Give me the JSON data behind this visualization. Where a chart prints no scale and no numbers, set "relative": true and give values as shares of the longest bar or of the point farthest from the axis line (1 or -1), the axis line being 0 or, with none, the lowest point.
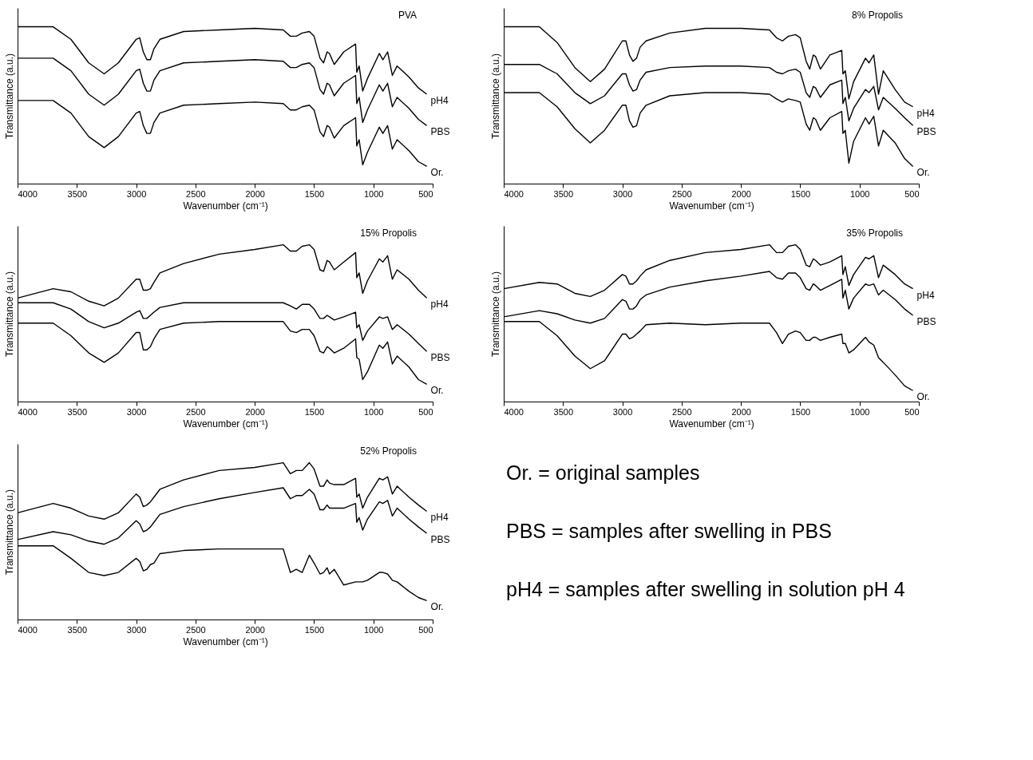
{
  "chart_data": [
    {
      "type": "line",
      "title": "PVA",
      "xlabel": "Wavenumber (cm⁻¹)",
      "ylabel": "Transmittance (a.u.)",
      "relative": true,
      "tick_labels": "x",
      "grid": false,
      "legend": false,
      "marker": "none",
      "line_style": "solid",
      "xlim": [
        4000,
        500
      ],
      "xticks": [
        4000,
        3500,
        3000,
        2500,
        2000,
        1500,
        1000,
        500
      ],
      "x": [
        4000,
        3700,
        3550,
        3400,
        3270,
        3150,
        3000,
        2970,
        2940,
        2910,
        2880,
        2850,
        2800,
        2600,
        2300,
        2000,
        1760,
        1700,
        1650,
        1600,
        1540,
        1500,
        1450,
        1420,
        1390,
        1370,
        1330,
        1250,
        1150,
        1140,
        1120,
        1090,
        1050,
        950,
        920,
        880,
        840,
        800,
        700,
        620,
        550
      ],
      "series": [
        {
          "name": "pH4",
          "color": "#000000",
          "values": [
            1.0,
            1.0,
            0.92,
            0.77,
            0.7,
            0.77,
            0.92,
            0.93,
            0.84,
            0.79,
            0.79,
            0.86,
            0.92,
            0.97,
            0.98,
            0.99,
            0.98,
            0.94,
            0.94,
            0.96,
            0.97,
            0.94,
            0.8,
            0.77,
            0.84,
            0.83,
            0.76,
            0.84,
            0.89,
            0.71,
            0.75,
            0.59,
            0.67,
            0.83,
            0.79,
            0.84,
            0.69,
            0.75,
            0.68,
            0.61,
            0.57
          ]
        },
        {
          "name": "PBS",
          "color": "#000000",
          "values": [
            0.8,
            0.8,
            0.72,
            0.57,
            0.5,
            0.57,
            0.72,
            0.73,
            0.64,
            0.59,
            0.59,
            0.66,
            0.72,
            0.77,
            0.78,
            0.79,
            0.78,
            0.74,
            0.74,
            0.76,
            0.77,
            0.74,
            0.6,
            0.57,
            0.64,
            0.63,
            0.56,
            0.64,
            0.69,
            0.51,
            0.55,
            0.39,
            0.47,
            0.63,
            0.59,
            0.64,
            0.49,
            0.55,
            0.48,
            0.41,
            0.37
          ]
        },
        {
          "name": "Or.",
          "color": "#000000",
          "values": [
            0.53,
            0.53,
            0.45,
            0.3,
            0.23,
            0.3,
            0.45,
            0.46,
            0.37,
            0.32,
            0.32,
            0.39,
            0.45,
            0.5,
            0.51,
            0.52,
            0.51,
            0.47,
            0.47,
            0.49,
            0.5,
            0.47,
            0.33,
            0.3,
            0.37,
            0.36,
            0.29,
            0.37,
            0.42,
            0.24,
            0.28,
            0.12,
            0.2,
            0.36,
            0.32,
            0.37,
            0.22,
            0.28,
            0.21,
            0.14,
            0.11
          ]
        }
      ]
    },
    {
      "type": "line",
      "title": "8% Propolis",
      "xlabel": "Wavenumber (cm⁻¹)",
      "ylabel": "Transmittance (a.u.)",
      "relative": true,
      "tick_labels": "x",
      "grid": false,
      "legend": false,
      "marker": "none",
      "line_style": "solid",
      "xlim": [
        4000,
        500
      ],
      "xticks": [
        4000,
        3500,
        3000,
        2500,
        2000,
        1500,
        1000,
        500
      ],
      "x": [
        4000,
        3700,
        3550,
        3400,
        3270,
        3150,
        3000,
        2970,
        2940,
        2910,
        2880,
        2850,
        2800,
        2600,
        2300,
        2000,
        1760,
        1700,
        1650,
        1600,
        1540,
        1500,
        1450,
        1420,
        1390,
        1370,
        1330,
        1250,
        1150,
        1140,
        1120,
        1090,
        1050,
        950,
        920,
        880,
        840,
        800,
        700,
        620,
        550
      ],
      "series": [
        {
          "name": "pH4",
          "color": "#000000",
          "values": [
            1.0,
            1.0,
            0.9,
            0.74,
            0.65,
            0.73,
            0.91,
            0.91,
            0.82,
            0.78,
            0.8,
            0.87,
            0.91,
            0.96,
            0.99,
            0.99,
            0.98,
            0.93,
            0.91,
            0.94,
            0.95,
            0.93,
            0.78,
            0.73,
            0.82,
            0.81,
            0.73,
            0.82,
            0.85,
            0.7,
            0.72,
            0.54,
            0.65,
            0.8,
            0.77,
            0.82,
            0.57,
            0.72,
            0.6,
            0.52,
            0.49
          ]
        },
        {
          "name": "PBS",
          "color": "#000000",
          "values": [
            0.76,
            0.76,
            0.7,
            0.58,
            0.51,
            0.56,
            0.7,
            0.7,
            0.63,
            0.59,
            0.6,
            0.66,
            0.71,
            0.74,
            0.75,
            0.75,
            0.74,
            0.71,
            0.7,
            0.72,
            0.73,
            0.71,
            0.58,
            0.55,
            0.62,
            0.61,
            0.55,
            0.63,
            0.66,
            0.51,
            0.55,
            0.4,
            0.48,
            0.6,
            0.58,
            0.62,
            0.47,
            0.55,
            0.48,
            0.42,
            0.37
          ]
        },
        {
          "name": "Or.",
          "color": "#000000",
          "values": [
            0.58,
            0.58,
            0.49,
            0.35,
            0.26,
            0.34,
            0.5,
            0.5,
            0.4,
            0.36,
            0.37,
            0.45,
            0.5,
            0.56,
            0.58,
            0.58,
            0.57,
            0.54,
            0.52,
            0.54,
            0.53,
            0.52,
            0.38,
            0.34,
            0.42,
            0.41,
            0.34,
            0.42,
            0.46,
            0.32,
            0.34,
            0.13,
            0.27,
            0.42,
            0.38,
            0.43,
            0.24,
            0.34,
            0.26,
            0.16,
            0.11
          ]
        }
      ]
    },
    {
      "type": "line",
      "title": "15% Propolis",
      "xlabel": "Wavenumber (cm⁻¹)",
      "ylabel": "Transmittance (a.u.)",
      "relative": true,
      "tick_labels": "x",
      "grid": false,
      "legend": false,
      "marker": "none",
      "line_style": "solid",
      "xlim": [
        4000,
        500
      ],
      "xticks": [
        4000,
        3500,
        3000,
        2500,
        2000,
        1500,
        1000,
        500
      ],
      "x": [
        4000,
        3700,
        3550,
        3400,
        3270,
        3150,
        3000,
        2970,
        2940,
        2910,
        2880,
        2850,
        2800,
        2600,
        2300,
        2000,
        1760,
        1700,
        1650,
        1600,
        1540,
        1500,
        1450,
        1420,
        1390,
        1370,
        1330,
        1250,
        1150,
        1140,
        1120,
        1090,
        1050,
        950,
        920,
        880,
        840,
        800,
        700,
        620,
        550
      ],
      "series": [
        {
          "name": "pH4",
          "color": "#000000",
          "values": [
            0.66,
            0.72,
            0.7,
            0.64,
            0.61,
            0.66,
            0.78,
            0.78,
            0.71,
            0.71,
            0.72,
            0.76,
            0.82,
            0.88,
            0.94,
            0.97,
            1.0,
            0.96,
            0.96,
            0.99,
            1.0,
            0.97,
            0.84,
            0.83,
            0.9,
            0.89,
            0.84,
            0.89,
            0.95,
            0.79,
            0.82,
            0.69,
            0.77,
            0.91,
            0.89,
            0.93,
            0.78,
            0.84,
            0.78,
            0.71,
            0.66
          ]
        },
        {
          "name": "PBS",
          "color": "#000000",
          "values": [
            0.63,
            0.63,
            0.59,
            0.51,
            0.47,
            0.5,
            0.57,
            0.58,
            0.53,
            0.53,
            0.55,
            0.57,
            0.6,
            0.63,
            0.63,
            0.63,
            0.63,
            0.61,
            0.59,
            0.62,
            0.62,
            0.59,
            0.53,
            0.53,
            0.55,
            0.54,
            0.52,
            0.54,
            0.57,
            0.47,
            0.49,
            0.39,
            0.45,
            0.54,
            0.53,
            0.54,
            0.46,
            0.49,
            0.43,
            0.37,
            0.32
          ]
        },
        {
          "name": "Or.",
          "color": "#000000",
          "values": [
            0.5,
            0.5,
            0.42,
            0.31,
            0.25,
            0.31,
            0.44,
            0.44,
            0.33,
            0.33,
            0.35,
            0.4,
            0.46,
            0.5,
            0.51,
            0.51,
            0.51,
            0.45,
            0.44,
            0.46,
            0.46,
            0.42,
            0.32,
            0.31,
            0.35,
            0.34,
            0.31,
            0.34,
            0.4,
            0.28,
            0.27,
            0.14,
            0.19,
            0.36,
            0.34,
            0.38,
            0.24,
            0.29,
            0.22,
            0.14,
            0.11
          ]
        }
      ]
    },
    {
      "type": "line",
      "title": "35% Propolis",
      "xlabel": "Wavenumber (cm⁻¹)",
      "ylabel": "Transmittance (a.u.)",
      "relative": true,
      "tick_labels": "x",
      "grid": false,
      "legend": false,
      "marker": "none",
      "line_style": "solid",
      "xlim": [
        4000,
        500
      ],
      "xticks": [
        4000,
        3500,
        3000,
        2500,
        2000,
        1500,
        1000,
        500
      ],
      "x": [
        4000,
        3700,
        3550,
        3400,
        3270,
        3150,
        3000,
        2970,
        2940,
        2910,
        2880,
        2850,
        2800,
        2600,
        2300,
        2000,
        1760,
        1700,
        1650,
        1600,
        1540,
        1500,
        1450,
        1420,
        1390,
        1370,
        1330,
        1250,
        1150,
        1140,
        1120,
        1090,
        1050,
        950,
        920,
        880,
        840,
        800,
        700,
        620,
        550
      ],
      "series": [
        {
          "name": "pH4",
          "color": "#000000",
          "values": [
            0.72,
            0.76,
            0.75,
            0.69,
            0.67,
            0.71,
            0.81,
            0.8,
            0.75,
            0.75,
            0.77,
            0.8,
            0.84,
            0.9,
            0.95,
            0.97,
            1.0,
            0.95,
            0.95,
            0.99,
            1.0,
            0.97,
            0.87,
            0.86,
            0.91,
            0.9,
            0.87,
            0.89,
            0.93,
            0.81,
            0.86,
            0.74,
            0.81,
            0.92,
            0.91,
            0.93,
            0.79,
            0.87,
            0.81,
            0.75,
            0.72
          ]
        },
        {
          "name": "PBS",
          "color": "#000000",
          "values": [
            0.54,
            0.58,
            0.56,
            0.52,
            0.5,
            0.53,
            0.65,
            0.64,
            0.59,
            0.59,
            0.61,
            0.65,
            0.68,
            0.73,
            0.77,
            0.8,
            0.83,
            0.79,
            0.78,
            0.82,
            0.82,
            0.79,
            0.72,
            0.71,
            0.75,
            0.74,
            0.71,
            0.74,
            0.78,
            0.66,
            0.71,
            0.59,
            0.66,
            0.75,
            0.74,
            0.75,
            0.68,
            0.71,
            0.65,
            0.59,
            0.55
          ]
        },
        {
          "name": "Or.",
          "color": "#000000",
          "values": [
            0.51,
            0.51,
            0.42,
            0.29,
            0.21,
            0.26,
            0.43,
            0.43,
            0.4,
            0.41,
            0.43,
            0.45,
            0.49,
            0.5,
            0.49,
            0.5,
            0.5,
            0.44,
            0.37,
            0.43,
            0.45,
            0.44,
            0.39,
            0.39,
            0.41,
            0.41,
            0.39,
            0.41,
            0.43,
            0.37,
            0.37,
            0.31,
            0.33,
            0.41,
            0.38,
            0.36,
            0.28,
            0.25,
            0.17,
            0.1,
            0.07
          ]
        }
      ]
    },
    {
      "type": "line",
      "title": "52% Propolis",
      "xlabel": "Wavenumber (cm⁻¹)",
      "ylabel": "Transmittance (a.u.)",
      "relative": true,
      "tick_labels": "x",
      "grid": false,
      "legend": false,
      "marker": "none",
      "line_style": "solid",
      "xlim": [
        4000,
        500
      ],
      "xticks": [
        4000,
        3500,
        3000,
        2500,
        2000,
        1500,
        1000,
        500
      ],
      "x": [
        4000,
        3700,
        3550,
        3400,
        3270,
        3150,
        3000,
        2970,
        2940,
        2910,
        2880,
        2850,
        2800,
        2600,
        2300,
        2000,
        1760,
        1700,
        1650,
        1600,
        1540,
        1500,
        1450,
        1420,
        1390,
        1370,
        1330,
        1250,
        1150,
        1140,
        1120,
        1090,
        1050,
        950,
        920,
        880,
        840,
        800,
        700,
        620,
        550
      ],
      "series": [
        {
          "name": "pH4",
          "color": "#000000",
          "values": [
            0.68,
            0.74,
            0.71,
            0.66,
            0.64,
            0.68,
            0.8,
            0.78,
            0.72,
            0.73,
            0.75,
            0.78,
            0.83,
            0.89,
            0.95,
            0.97,
            1.0,
            0.93,
            0.95,
            0.95,
            1.0,
            0.96,
            0.85,
            0.85,
            0.89,
            0.87,
            0.86,
            0.86,
            0.9,
            0.78,
            0.8,
            0.71,
            0.78,
            0.9,
            0.89,
            0.91,
            0.8,
            0.85,
            0.78,
            0.73,
            0.69
          ]
        },
        {
          "name": "PBS",
          "color": "#000000",
          "values": [
            0.51,
            0.56,
            0.54,
            0.5,
            0.48,
            0.52,
            0.63,
            0.61,
            0.56,
            0.57,
            0.59,
            0.62,
            0.67,
            0.72,
            0.77,
            0.81,
            0.84,
            0.77,
            0.79,
            0.79,
            0.83,
            0.8,
            0.7,
            0.7,
            0.73,
            0.71,
            0.71,
            0.71,
            0.74,
            0.62,
            0.65,
            0.57,
            0.64,
            0.75,
            0.74,
            0.76,
            0.66,
            0.71,
            0.64,
            0.59,
            0.55
          ]
        },
        {
          "name": "Or.",
          "color": "#000000",
          "values": [
            0.47,
            0.47,
            0.39,
            0.3,
            0.28,
            0.3,
            0.39,
            0.37,
            0.31,
            0.32,
            0.35,
            0.36,
            0.42,
            0.44,
            0.45,
            0.45,
            0.45,
            0.3,
            0.32,
            0.3,
            0.41,
            0.36,
            0.29,
            0.3,
            0.33,
            0.29,
            0.32,
            0.22,
            0.24,
            0.24,
            0.24,
            0.24,
            0.25,
            0.3,
            0.3,
            0.29,
            0.25,
            0.24,
            0.18,
            0.14,
            0.12
          ]
        }
      ]
    },
    {
      "type": "other",
      "annotations": [
        "Or. = original samples",
        "PBS = samples after swelling in PBS",
        "pH4 = samples after swelling in solution pH 4"
      ]
    }
  ]
}
